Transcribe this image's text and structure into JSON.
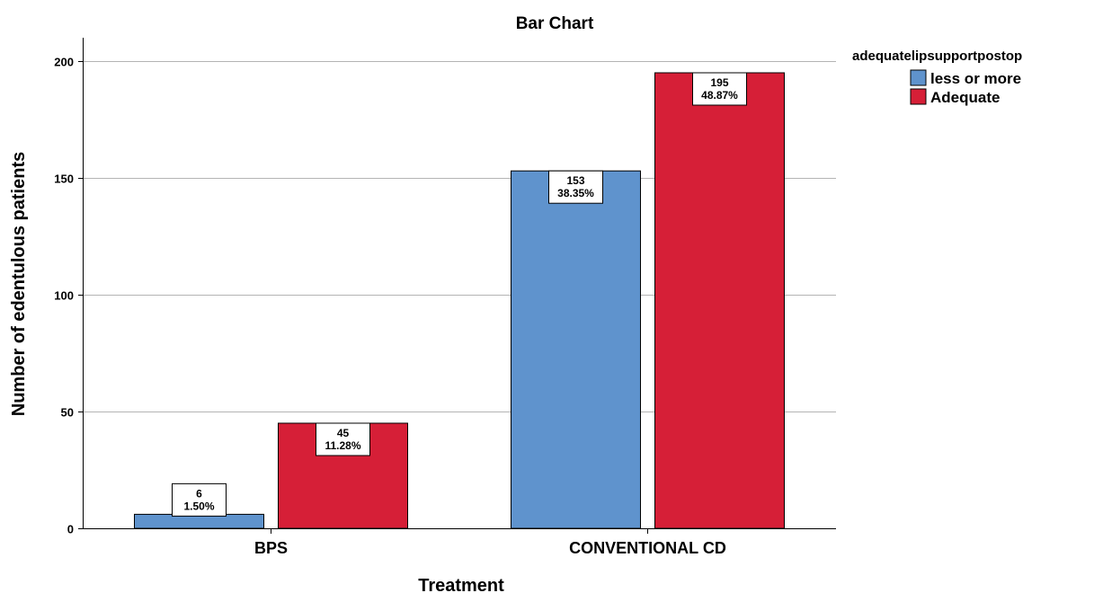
{
  "chart_data": {
    "type": "bar",
    "title": "Bar Chart",
    "xlabel": "Treatment",
    "ylabel": "Number of edentulous patients",
    "categories": [
      "BPS",
      "CONVENTIONAL CD"
    ],
    "ylim": [
      0,
      210
    ],
    "yticks": [
      0,
      50,
      100,
      150,
      200
    ],
    "grid": true,
    "legend": {
      "title": "adequatelipsupportpostop",
      "position": "top-right"
    },
    "series": [
      {
        "name": "less or more",
        "color": "#5f93cd",
        "values": [
          6,
          153
        ],
        "percent_labels": [
          "1.50%",
          "38.35%"
        ]
      },
      {
        "name": "Adequate",
        "color": "#d61f37",
        "values": [
          45,
          195
        ],
        "percent_labels": [
          "11.28%",
          "48.87%"
        ]
      }
    ]
  }
}
